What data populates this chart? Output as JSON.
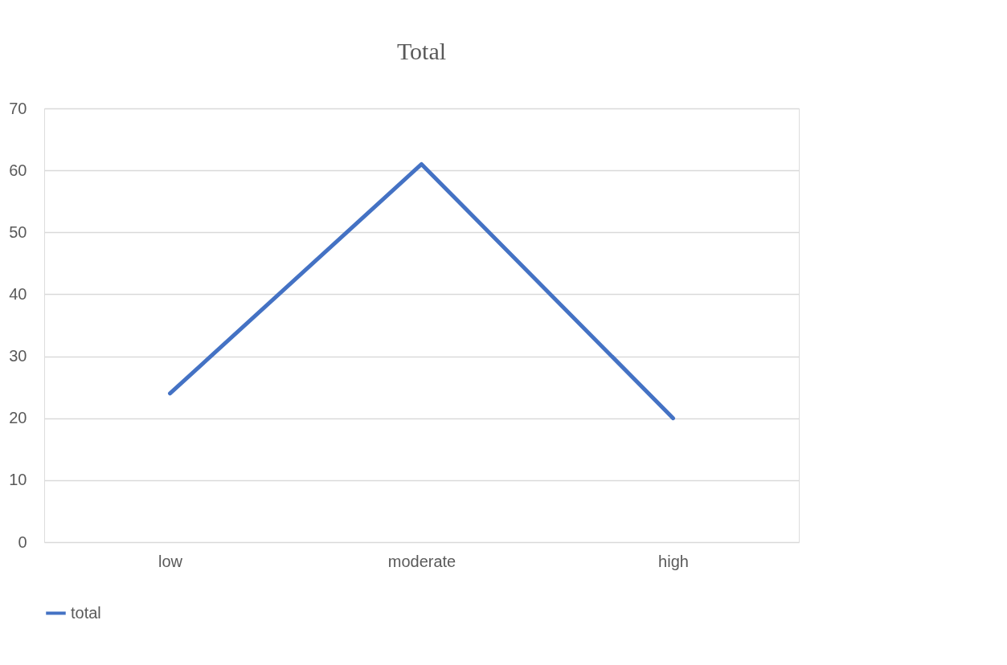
{
  "chart_data": {
    "type": "line",
    "title": "Total",
    "categories": [
      "low",
      "moderate",
      "high"
    ],
    "series": [
      {
        "name": "total",
        "color": "#4472c4",
        "values": [
          24,
          61,
          20
        ]
      }
    ],
    "ylim": [
      0,
      70
    ],
    "yticks": [
      0,
      10,
      20,
      30,
      40,
      50,
      60,
      70
    ],
    "grid": "y",
    "legend": "bottom",
    "marker": "none"
  }
}
